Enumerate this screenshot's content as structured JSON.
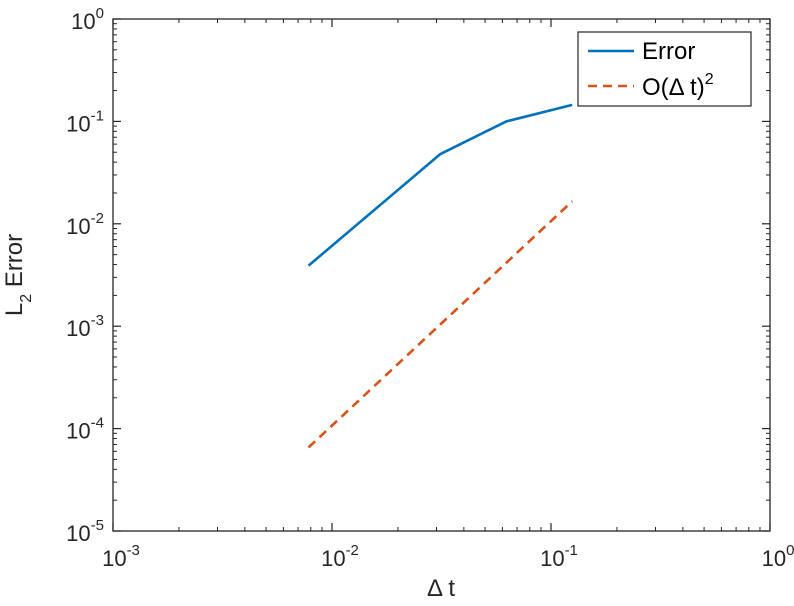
{
  "chart_data": {
    "type": "line",
    "x_scale": "log",
    "y_scale": "log",
    "xlim": [
      0.001,
      1
    ],
    "ylim": [
      1e-05,
      1
    ],
    "grid": false,
    "legend_position": "top-right",
    "title": "",
    "xlabel": "Δ t",
    "ylabel": {
      "base": "L",
      "subscript": "2",
      "rest": " Error"
    },
    "x_ticks": [
      {
        "value": 0.001,
        "base": "10",
        "exp": "-3"
      },
      {
        "value": 0.01,
        "base": "10",
        "exp": "-2"
      },
      {
        "value": 0.1,
        "base": "10",
        "exp": "-1"
      },
      {
        "value": 1,
        "base": "10",
        "exp": "0"
      }
    ],
    "y_ticks": [
      {
        "value": 1e-05,
        "base": "10",
        "exp": "-5"
      },
      {
        "value": 0.0001,
        "base": "10",
        "exp": "-4"
      },
      {
        "value": 0.001,
        "base": "10",
        "exp": "-3"
      },
      {
        "value": 0.01,
        "base": "10",
        "exp": "-2"
      },
      {
        "value": 0.1,
        "base": "10",
        "exp": "-1"
      },
      {
        "value": 1,
        "base": "10",
        "exp": "0"
      }
    ],
    "series": [
      {
        "name": "Error",
        "color": "#0072BD",
        "style": "solid",
        "x": [
          0.0078125,
          0.03125,
          0.0625,
          0.125
        ],
        "y": [
          0.0039,
          0.048,
          0.1,
          0.145
        ]
      },
      {
        "name": "O(Δ t)",
        "name_superscript": "2",
        "color": "#D95319",
        "style": "dashed",
        "x": [
          0.0078125,
          0.125
        ],
        "y": [
          6.54e-05,
          0.0166
        ]
      }
    ]
  }
}
